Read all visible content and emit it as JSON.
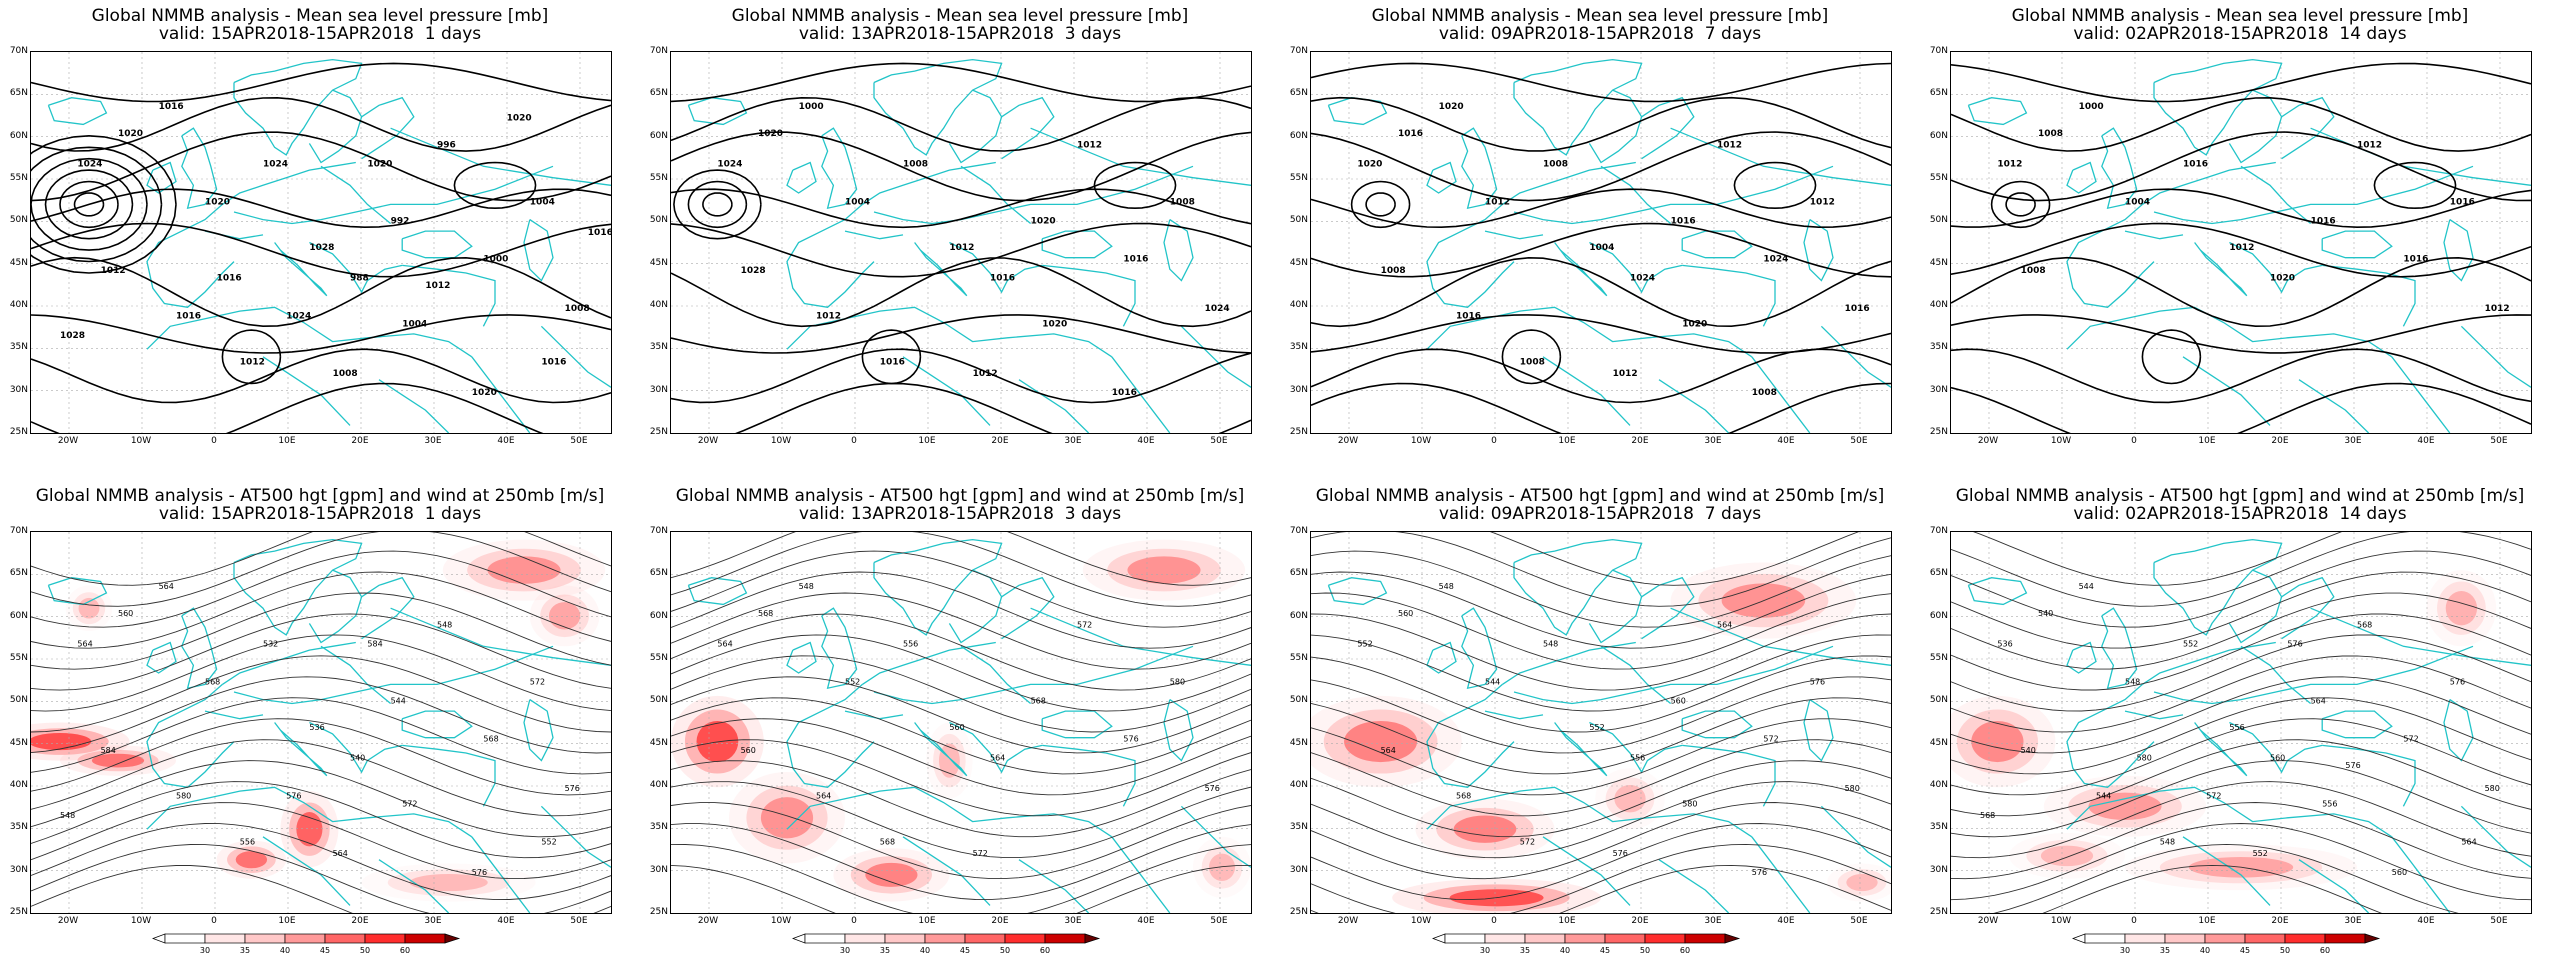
{
  "lat_labels": [
    "70N",
    "65N",
    "60N",
    "55N",
    "50N",
    "45N",
    "40N",
    "35N",
    "30N",
    "25N"
  ],
  "lon_labels": [
    "20W",
    "10W",
    "0",
    "10E",
    "20E",
    "30E",
    "40E",
    "50E"
  ],
  "colorbar": {
    "ticks": [
      "30",
      "35",
      "40",
      "45",
      "50",
      "60"
    ],
    "colors": [
      "#ffffff",
      "#ffe6e6",
      "#ffc8c8",
      "#ff9a9a",
      "#ff6666",
      "#ff2d2d",
      "#cc0000",
      "#660000"
    ]
  },
  "colors": {
    "coast": "#22c4c8",
    "contour": "#000000",
    "grid": "#aaaaaa"
  },
  "panels": [
    {
      "title": "Global NMMB analysis - Mean sea level pressure [mb]",
      "valid": "valid: 15APR2018-15APR2018  1 days",
      "kind": "mslp",
      "labels": [
        "1024",
        "1020",
        "1016",
        "1020",
        "1024",
        "1028",
        "988",
        "992",
        "996",
        "1000",
        "1004",
        "1008",
        "1012",
        "1016",
        "1012",
        "1008",
        "1004",
        "1020",
        "1016",
        "1028",
        "1024",
        "1020",
        "1016",
        "1012",
        "1020",
        "1016"
      ]
    },
    {
      "title": "Global NMMB analysis - Mean sea level pressure [mb]",
      "valid": "valid: 13APR2018-15APR2018  3 days",
      "kind": "mslp",
      "labels": [
        "1024",
        "1020",
        "1000",
        "1004",
        "1008",
        "1012",
        "1016",
        "1020",
        "1012",
        "1016",
        "1008",
        "1024",
        "1028",
        "1012",
        "1016",
        "1012",
        "1020",
        "1016"
      ]
    },
    {
      "title": "Global NMMB analysis - Mean sea level pressure [mb]",
      "valid": "valid: 09APR2018-15APR2018  7 days",
      "kind": "mslp",
      "labels": [
        "1020",
        "1016",
        "1020",
        "1012",
        "1008",
        "1004",
        "1024",
        "1016",
        "1012",
        "1024",
        "1012",
        "1016",
        "1008",
        "1016",
        "1008",
        "1012",
        "1020",
        "1008"
      ]
    },
    {
      "title": "Global NMMB analysis - Mean sea level pressure [mb]",
      "valid": "valid: 02APR2018-15APR2018  14 days",
      "kind": "mslp",
      "labels": [
        "1012",
        "1008",
        "1000",
        "1004",
        "1016",
        "1012",
        "1020",
        "1016",
        "1012",
        "1016",
        "1016",
        "1012",
        "1008"
      ]
    },
    {
      "title": "Global NMMB analysis - AT500 hgt [gpm] and wind at 250mb [m/s]",
      "valid": "valid: 15APR2018-15APR2018  1 days",
      "kind": "z500",
      "labels": [
        "564",
        "560",
        "564",
        "568",
        "532",
        "536",
        "540",
        "544",
        "548",
        "568",
        "572",
        "576",
        "584",
        "580",
        "556",
        "564",
        "572",
        "576",
        "552",
        "548",
        "576",
        "584"
      ]
    },
    {
      "title": "Global NMMB analysis - AT500 hgt [gpm] and wind at 250mb [m/s]",
      "valid": "valid: 13APR2018-15APR2018  3 days",
      "kind": "z500",
      "labels": [
        "564",
        "568",
        "548",
        "552",
        "556",
        "560",
        "564",
        "568",
        "572",
        "576",
        "580",
        "576",
        "560",
        "564",
        "568",
        "572"
      ]
    },
    {
      "title": "Global NMMB analysis - AT500 hgt [gpm] and wind at 250mb [m/s]",
      "valid": "valid: 09APR2018-15APR2018  7 days",
      "kind": "z500",
      "labels": [
        "552",
        "560",
        "548",
        "544",
        "548",
        "552",
        "556",
        "560",
        "564",
        "572",
        "576",
        "580",
        "564",
        "568",
        "572",
        "576",
        "580",
        "576"
      ]
    },
    {
      "title": "Global NMMB analysis - AT500 hgt [gpm] and wind at 250mb [m/s]",
      "valid": "valid: 02APR2018-15APR2018  14 days",
      "kind": "z500",
      "labels": [
        "536",
        "540",
        "544",
        "548",
        "552",
        "556",
        "560",
        "564",
        "568",
        "572",
        "576",
        "580",
        "540",
        "544",
        "548",
        "552",
        "556",
        "560",
        "564",
        "568",
        "572",
        "576",
        "580",
        "576"
      ]
    }
  ]
}
